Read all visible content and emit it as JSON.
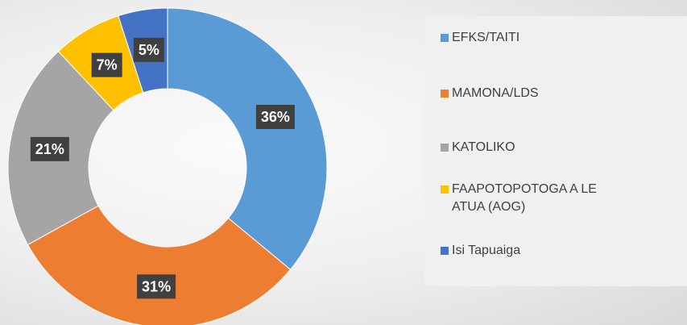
{
  "chart_data": {
    "type": "donut",
    "categories": [
      "EFKS/TAITI",
      "MAMONA/LDS",
      "KATOLIKO",
      "FAAPOTOPOTOGA A LE ATUA (AOG)",
      "Isi Tapuaiga"
    ],
    "values": [
      36,
      31,
      21,
      7,
      5
    ],
    "value_labels": [
      "36%",
      "31%",
      "21%",
      "7%",
      "5%"
    ],
    "colors": [
      "#5b9bd5",
      "#ed7d31",
      "#a5a5a5",
      "#ffc000",
      "#4472c4"
    ],
    "legend": "right"
  }
}
